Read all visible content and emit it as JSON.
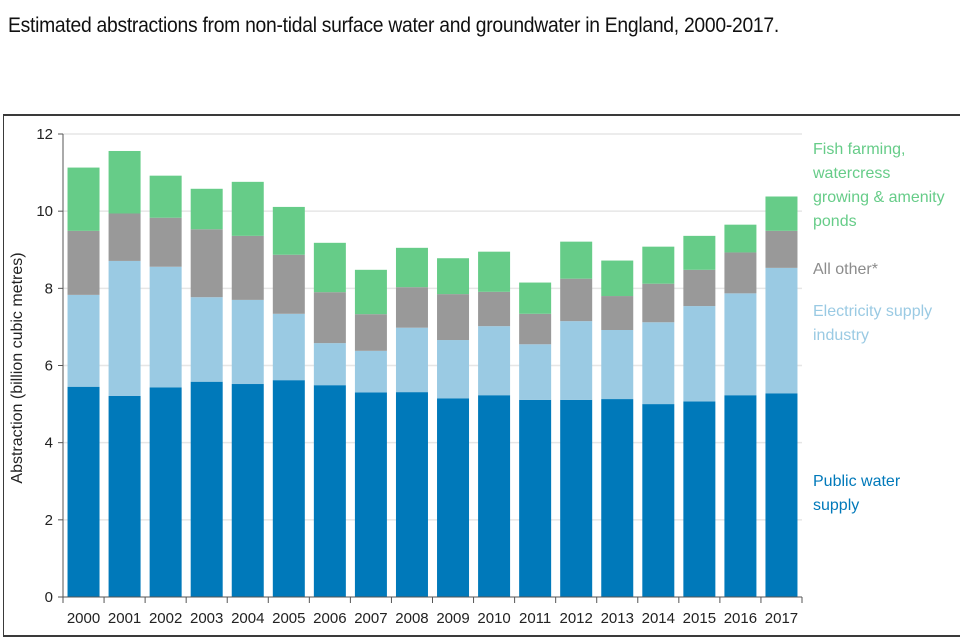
{
  "title": "Estimated abstractions from non-tidal surface water and groundwater in England, 2000-2017.",
  "chart_data": {
    "type": "bar",
    "stacked": true,
    "title": "Estimated abstractions from non-tidal surface water and groundwater in England, 2000-2017.",
    "xlabel": "",
    "ylabel": "Abstraction (billion cubic metres)",
    "ylim": [
      0,
      12
    ],
    "yticks": [
      0,
      2,
      4,
      6,
      8,
      10,
      12
    ],
    "grid": true,
    "legend_position": "right",
    "categories": [
      "2000",
      "2001",
      "2002",
      "2003",
      "2004",
      "2005",
      "2006",
      "2007",
      "2008",
      "2009",
      "2010",
      "2011",
      "2012",
      "2013",
      "2014",
      "2015",
      "2016",
      "2017"
    ],
    "series": [
      {
        "name": "Public water supply",
        "color": "#0079BA",
        "values": [
          5.45,
          5.21,
          5.43,
          5.58,
          5.52,
          5.62,
          5.49,
          5.3,
          5.31,
          5.15,
          5.23,
          5.11,
          5.11,
          5.13,
          5.0,
          5.07,
          5.23,
          5.28
        ]
      },
      {
        "name": "Electricity supply industry",
        "color": "#9ACAE3",
        "values": [
          2.38,
          3.5,
          3.13,
          2.19,
          2.18,
          1.72,
          1.09,
          1.08,
          1.67,
          1.51,
          1.79,
          1.44,
          2.04,
          1.79,
          2.12,
          2.47,
          2.64,
          3.25
        ]
      },
      {
        "name": "All other*",
        "color": "#999999",
        "values": [
          1.66,
          1.23,
          1.27,
          1.76,
          1.66,
          1.53,
          1.32,
          0.95,
          1.05,
          1.19,
          0.89,
          0.79,
          1.1,
          0.88,
          1.0,
          0.94,
          1.06,
          0.96
        ]
      },
      {
        "name": "Fish farming, watercress growing & amenity ponds",
        "color": "#66CC88",
        "values": [
          1.64,
          1.62,
          1.09,
          1.05,
          1.4,
          1.24,
          1.28,
          1.15,
          1.02,
          0.93,
          1.04,
          0.81,
          0.96,
          0.92,
          0.96,
          0.88,
          0.72,
          0.89
        ]
      }
    ]
  },
  "legend": [
    {
      "text": "Fish farming,\nwatercress\ngrowing & amenity\nponds",
      "color": "#66CC88"
    },
    {
      "text": "All other*",
      "color": "#8C8C8C"
    },
    {
      "text": "Electricity supply\nindustry",
      "color": "#9ACAE3"
    },
    {
      "text": "Public water\nsupply",
      "color": "#0079BA"
    }
  ]
}
